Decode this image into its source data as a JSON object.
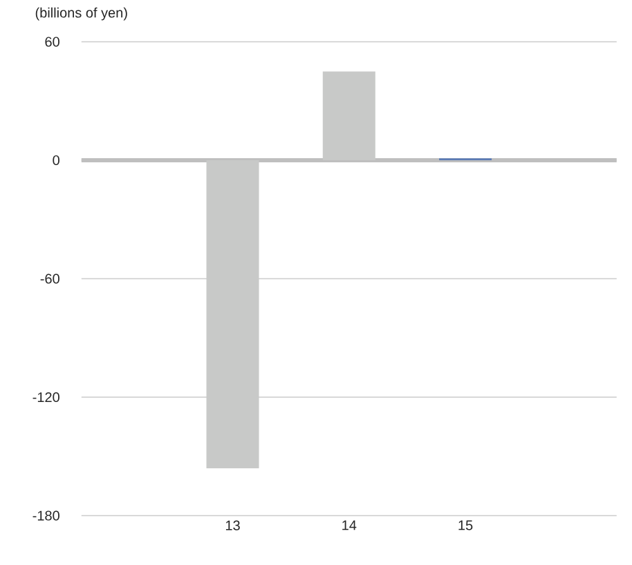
{
  "chart_data": {
    "type": "bar",
    "ylabel": "(billions of yen)",
    "categories": [
      "13",
      "14",
      "15"
    ],
    "values": [
      -156,
      45,
      1
    ],
    "colors": [
      "#c8c9c8",
      "#c8c9c8",
      "#5b7bb5"
    ],
    "ylim": [
      -180,
      60
    ],
    "yticks": [
      -180,
      -120,
      -60,
      0,
      60
    ],
    "grid": "y"
  }
}
